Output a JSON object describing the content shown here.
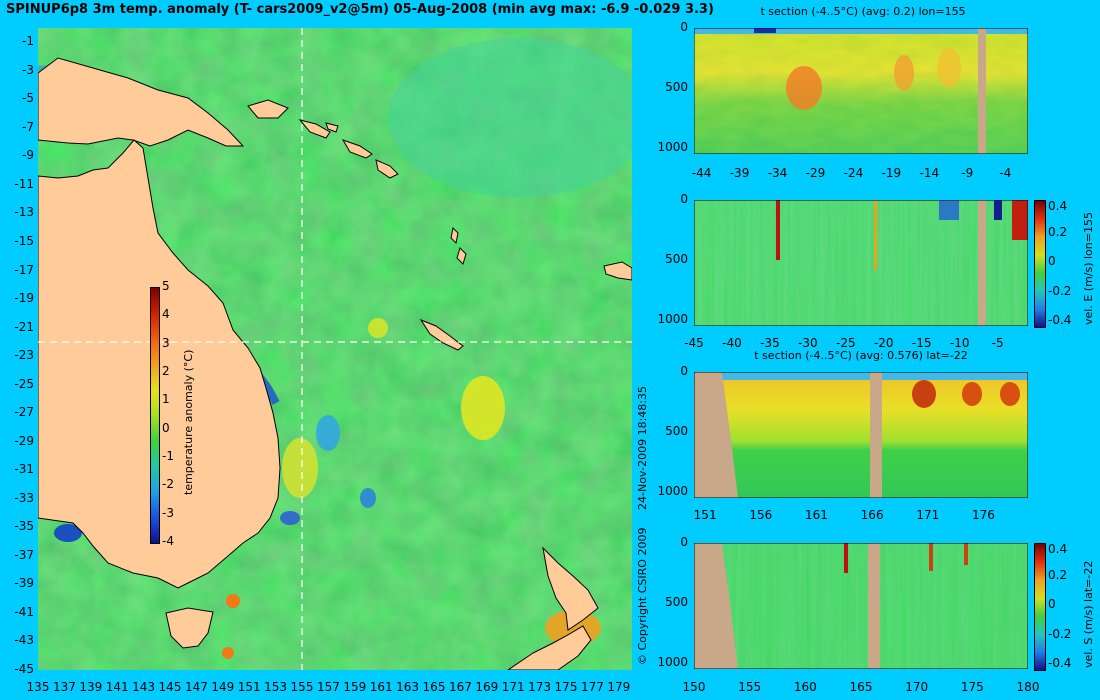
{
  "header": {
    "title": "SPINUP6p8 3m temp. anomaly (T- cars2009_v2@5m) 05-Aug-2008 (min avg max: -6.9 -0.029 3.3)"
  },
  "map": {
    "lat_ticks": [
      "-1",
      "-3",
      "-5",
      "-7",
      "-9",
      "-11",
      "-13",
      "-15",
      "-17",
      "-19",
      "-21",
      "-23",
      "-25",
      "-27",
      "-29",
      "-31",
      "-33",
      "-35",
      "-37",
      "-39",
      "-41",
      "-43",
      "-45"
    ],
    "lon_ticks": [
      "135",
      "137",
      "139",
      "141",
      "143",
      "145",
      "147",
      "149",
      "151",
      "153",
      "155",
      "157",
      "159",
      "161",
      "163",
      "165",
      "167",
      "169",
      "171",
      "173",
      "175",
      "177",
      "179"
    ],
    "lon_range": [
      135,
      180
    ],
    "lat_range": [
      -45,
      0
    ],
    "crosshair": {
      "lon": 155,
      "lat": -22
    },
    "colorbar": {
      "label": "temperature anomaly (°C)",
      "ticks": [
        "5",
        "4",
        "3",
        "2",
        "1",
        "0",
        "-1",
        "-2",
        "-3",
        "-4"
      ]
    },
    "colors": {
      "land": "#ffcc99",
      "ocean": "#2fcf4f"
    }
  },
  "credits": {
    "timestamp": "24-Nov-2009 18:48:35",
    "copyright": "© Copyright CSIRO 2009"
  },
  "panels": [
    {
      "title": "t section (-4..5°C) (avg: 0.2) lon=155",
      "x_ticks": [
        "-44",
        "-39",
        "-34",
        "-29",
        "-24",
        "-19",
        "-14",
        "-9",
        "-4"
      ],
      "y_ticks": [
        "0",
        "500",
        "1000"
      ]
    },
    {
      "title": "",
      "x_ticks": [
        "-45",
        "-40",
        "-35",
        "-30",
        "-25",
        "-20",
        "-15",
        "-10",
        "-5"
      ],
      "y_ticks": [
        "0",
        "500",
        "1000"
      ],
      "colorbar": {
        "ticks": [
          "0.4",
          "0.2",
          "0",
          "-0.2",
          "-0.4"
        ],
        "label": "vel. E (m/s) lon=155"
      }
    },
    {
      "title": "t section (-4..5°C) (avg: 0.576) lat=-22",
      "x_ticks": [
        "151",
        "156",
        "161",
        "166",
        "171",
        "176"
      ],
      "y_ticks": [
        "0",
        "500",
        "1000"
      ]
    },
    {
      "title": "",
      "x_ticks": [
        "150",
        "155",
        "160",
        "165",
        "170",
        "175",
        "180"
      ],
      "y_ticks": [
        "0",
        "500",
        "1000"
      ],
      "colorbar": {
        "ticks": [
          "0.4",
          "0.2",
          "0",
          "-0.2",
          "-0.4"
        ],
        "label": "vel. S (m/s) lat=-22"
      }
    }
  ]
}
